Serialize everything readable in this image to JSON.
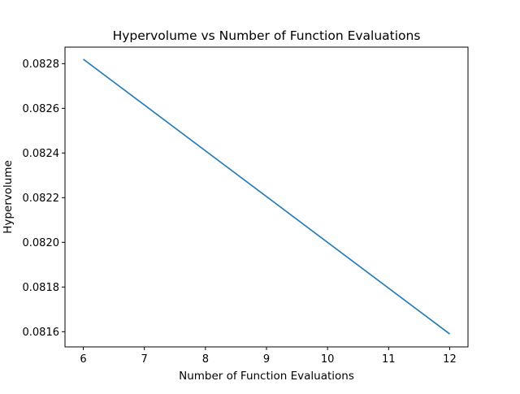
{
  "chart_data": {
    "type": "line",
    "title": "Hypervolume vs Number of Function Evaluations",
    "xlabel": "Number of Function Evaluations",
    "ylabel": "Hypervolume",
    "xlim": [
      5.7,
      12.3
    ],
    "ylim": [
      0.081532,
      0.082874
    ],
    "x_ticks": [
      6,
      7,
      8,
      9,
      10,
      11,
      12
    ],
    "y_ticks": [
      0.0816,
      0.0818,
      0.082,
      0.0822,
      0.0824,
      0.0826,
      0.0828
    ],
    "y_tick_labels": [
      "0.0816",
      "0.0818",
      "0.0820",
      "0.0822",
      "0.0824",
      "0.0826",
      "0.0828"
    ],
    "grid": false,
    "series": [
      {
        "x": [
          6,
          12
        ],
        "y": [
          0.08282,
          0.08159
        ],
        "color": "#1f77b4"
      }
    ]
  }
}
